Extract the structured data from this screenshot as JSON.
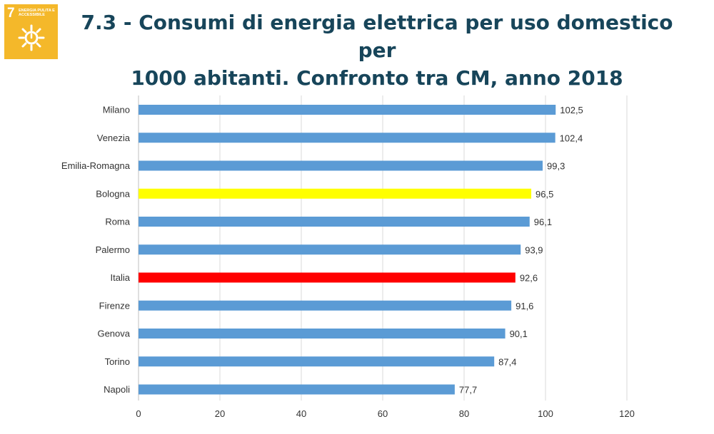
{
  "sdg_badge": {
    "number": "7",
    "text": "ENERGIA PULITA E ACCESSIBILE",
    "color": "#f4b82a",
    "icon": "sun-power-icon"
  },
  "title": {
    "line1": "7.3 - Consumi di energia elettrica per uso domestico per",
    "line2": "1000 abitanti. Confronto tra CM, anno 2018"
  },
  "chart_data": {
    "type": "bar",
    "orientation": "horizontal",
    "categories": [
      "Milano",
      "Venezia",
      "Emilia-Romagna",
      "Bologna",
      "Roma",
      "Palermo",
      "Italia",
      "Firenze",
      "Genova",
      "Torino",
      "Napoli"
    ],
    "values": [
      102.5,
      102.4,
      99.3,
      96.5,
      96.1,
      93.9,
      92.6,
      91.6,
      90.1,
      87.4,
      77.7
    ],
    "value_labels": [
      "102,5",
      "102,4",
      "99,3",
      "96,5",
      "96,1",
      "93,9",
      "92,6",
      "91,6",
      "90,1",
      "87,4",
      "77,7"
    ],
    "colors": [
      "#5b9bd5",
      "#5b9bd5",
      "#5b9bd5",
      "#ffff00",
      "#5b9bd5",
      "#5b9bd5",
      "#ff0000",
      "#5b9bd5",
      "#5b9bd5",
      "#5b9bd5",
      "#5b9bd5"
    ],
    "xlim": [
      0,
      120
    ],
    "xticks": [
      "0",
      "20",
      "40",
      "60",
      "80",
      "100",
      "120"
    ],
    "xtick_values": [
      0,
      20,
      40,
      60,
      80,
      100,
      120
    ],
    "grid": "vertical",
    "legend": "none",
    "xlabel": "",
    "ylabel": ""
  }
}
